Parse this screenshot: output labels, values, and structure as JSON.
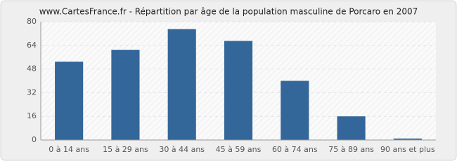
{
  "chart_data": {
    "type": "bar",
    "title": "www.CartesFrance.fr - Répartition par âge de la population masculine de Porcaro en 2007",
    "categories": [
      "0 à 14 ans",
      "15 à 29 ans",
      "30 à 44 ans",
      "45 à 59 ans",
      "60 à 74 ans",
      "75 à 89 ans",
      "90 ans et plus"
    ],
    "values": [
      53,
      61,
      75,
      67,
      40,
      16,
      1
    ],
    "color": "#336699",
    "ylim": [
      0,
      80
    ],
    "yticks": [
      0,
      16,
      32,
      48,
      64,
      80
    ],
    "grid": true
  }
}
